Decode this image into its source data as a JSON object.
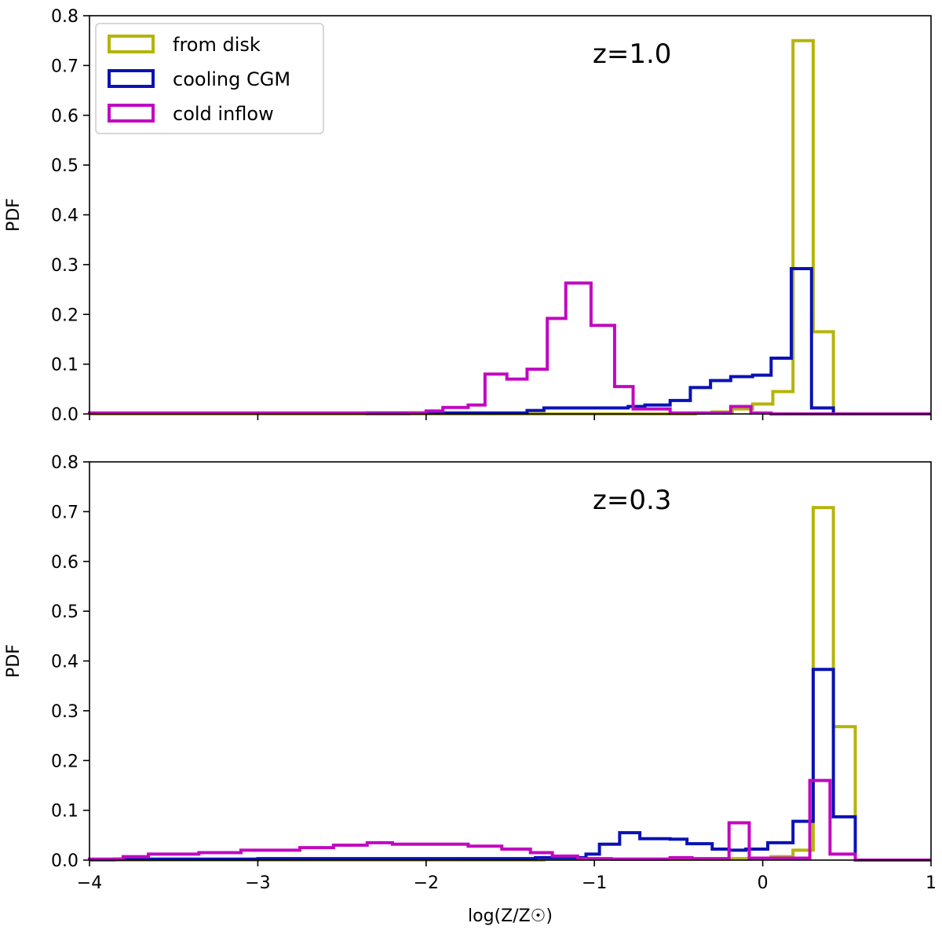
{
  "chart_data": [
    {
      "type": "histogram",
      "annotation": "z=1.0",
      "xlabel": "",
      "ylabel": "PDF",
      "xlim": [
        -4,
        1
      ],
      "ylim": [
        0,
        0.8
      ],
      "x_ticks": [
        -4,
        -3,
        -2,
        -1,
        0,
        1
      ],
      "x_tick_labels_shown": false,
      "y_ticks": [
        "0.0",
        "0.1",
        "0.2",
        "0.3",
        "0.4",
        "0.5",
        "0.6",
        "0.7",
        "0.8"
      ],
      "legend": {
        "position": "top-left",
        "entries": [
          {
            "label": "from disk",
            "color": "#b5b40b"
          },
          {
            "label": "cooling CGM",
            "color": "#0a12b4"
          },
          {
            "label": "cold inflow",
            "color": "#c108c1"
          }
        ]
      },
      "series": [
        {
          "name": "from disk",
          "color": "#b5b40b",
          "points": [
            [
              -4,
              0.0
            ],
            [
              -0.4,
              0.002
            ],
            [
              -0.3,
              0.004
            ],
            [
              -0.18,
              0.01
            ],
            [
              -0.06,
              0.02
            ],
            [
              0.06,
              0.045
            ],
            [
              0.18,
              0.75
            ],
            [
              0.3,
              0.165
            ],
            [
              0.42,
              0.0
            ],
            [
              1.0,
              0.0
            ]
          ]
        },
        {
          "name": "cooling CGM",
          "color": "#0a12b4",
          "points": [
            [
              -2.35,
              0.002
            ],
            [
              -1.4,
              0.007
            ],
            [
              -1.3,
              0.012
            ],
            [
              -0.8,
              0.015
            ],
            [
              -0.7,
              0.018
            ],
            [
              -0.55,
              0.027
            ],
            [
              -0.43,
              0.053
            ],
            [
              -0.31,
              0.067
            ],
            [
              -0.19,
              0.075
            ],
            [
              -0.06,
              0.078
            ],
            [
              0.05,
              0.112
            ],
            [
              0.17,
              0.292
            ],
            [
              0.29,
              0.012
            ],
            [
              0.42,
              0.0
            ],
            [
              1.0,
              0.0
            ]
          ]
        },
        {
          "name": "cold inflow",
          "color": "#c108c1",
          "points": [
            [
              -4,
              0.002
            ],
            [
              -2.35,
              0.001
            ],
            [
              -2.1,
              0.002
            ],
            [
              -2.0,
              0.006
            ],
            [
              -1.9,
              0.013
            ],
            [
              -1.75,
              0.018
            ],
            [
              -1.65,
              0.08
            ],
            [
              -1.52,
              0.07
            ],
            [
              -1.4,
              0.09
            ],
            [
              -1.28,
              0.192
            ],
            [
              -1.17,
              0.263
            ],
            [
              -1.02,
              0.178
            ],
            [
              -0.88,
              0.055
            ],
            [
              -0.77,
              0.01
            ],
            [
              -0.55,
              0.002
            ],
            [
              -0.19,
              0.015
            ],
            [
              -0.07,
              0.002
            ],
            [
              0.05,
              0.0
            ],
            [
              1.0,
              0.0
            ]
          ]
        }
      ]
    },
    {
      "type": "histogram",
      "annotation": "z=0.3",
      "xlabel": "log(Z/Z☉)",
      "ylabel": "PDF",
      "xlim": [
        -4,
        1
      ],
      "ylim": [
        0,
        0.8
      ],
      "x_ticks": [
        "−4",
        "−3",
        "−2",
        "−1",
        "0",
        "1"
      ],
      "y_ticks": [
        "0.0",
        "0.1",
        "0.2",
        "0.3",
        "0.4",
        "0.5",
        "0.6",
        "0.7",
        "0.8"
      ],
      "series": [
        {
          "name": "from disk",
          "color": "#b5b40b",
          "points": [
            [
              -4,
              0.0
            ],
            [
              -1.3,
              0.002
            ],
            [
              -0.2,
              0.003
            ],
            [
              0.05,
              0.007
            ],
            [
              0.18,
              0.02
            ],
            [
              0.3,
              0.708
            ],
            [
              0.42,
              0.268
            ],
            [
              0.55,
              0.0
            ],
            [
              1.0,
              0.0
            ]
          ]
        },
        {
          "name": "cooling CGM",
          "color": "#0a12b4",
          "points": [
            [
              -4,
              0.001
            ],
            [
              -3.85,
              0.002
            ],
            [
              -3.0,
              0.003
            ],
            [
              -1.35,
              0.005
            ],
            [
              -1.05,
              0.012
            ],
            [
              -0.97,
              0.032
            ],
            [
              -0.85,
              0.055
            ],
            [
              -0.73,
              0.043
            ],
            [
              -0.55,
              0.042
            ],
            [
              -0.45,
              0.033
            ],
            [
              -0.3,
              0.022
            ],
            [
              -0.2,
              0.02
            ],
            [
              -0.1,
              0.022
            ],
            [
              0.03,
              0.035
            ],
            [
              0.18,
              0.078
            ],
            [
              0.3,
              0.383
            ],
            [
              0.42,
              0.087
            ],
            [
              0.55,
              0.0
            ],
            [
              1.0,
              0.0
            ]
          ]
        },
        {
          "name": "cold inflow",
          "color": "#c108c1",
          "points": [
            [
              -4,
              0.002
            ],
            [
              -3.8,
              0.007
            ],
            [
              -3.65,
              0.012
            ],
            [
              -3.35,
              0.015
            ],
            [
              -3.1,
              0.02
            ],
            [
              -2.75,
              0.025
            ],
            [
              -2.55,
              0.03
            ],
            [
              -2.35,
              0.035
            ],
            [
              -2.2,
              0.032
            ],
            [
              -1.75,
              0.028
            ],
            [
              -1.55,
              0.022
            ],
            [
              -1.38,
              0.015
            ],
            [
              -1.25,
              0.008
            ],
            [
              -1.1,
              0.003
            ],
            [
              -0.9,
              0.002
            ],
            [
              -0.55,
              0.005
            ],
            [
              -0.42,
              0.003
            ],
            [
              -0.2,
              0.075
            ],
            [
              -0.08,
              0.004
            ],
            [
              0.28,
              0.16
            ],
            [
              0.4,
              0.012
            ],
            [
              0.55,
              0.0
            ],
            [
              1.0,
              0.0
            ]
          ]
        }
      ]
    }
  ]
}
